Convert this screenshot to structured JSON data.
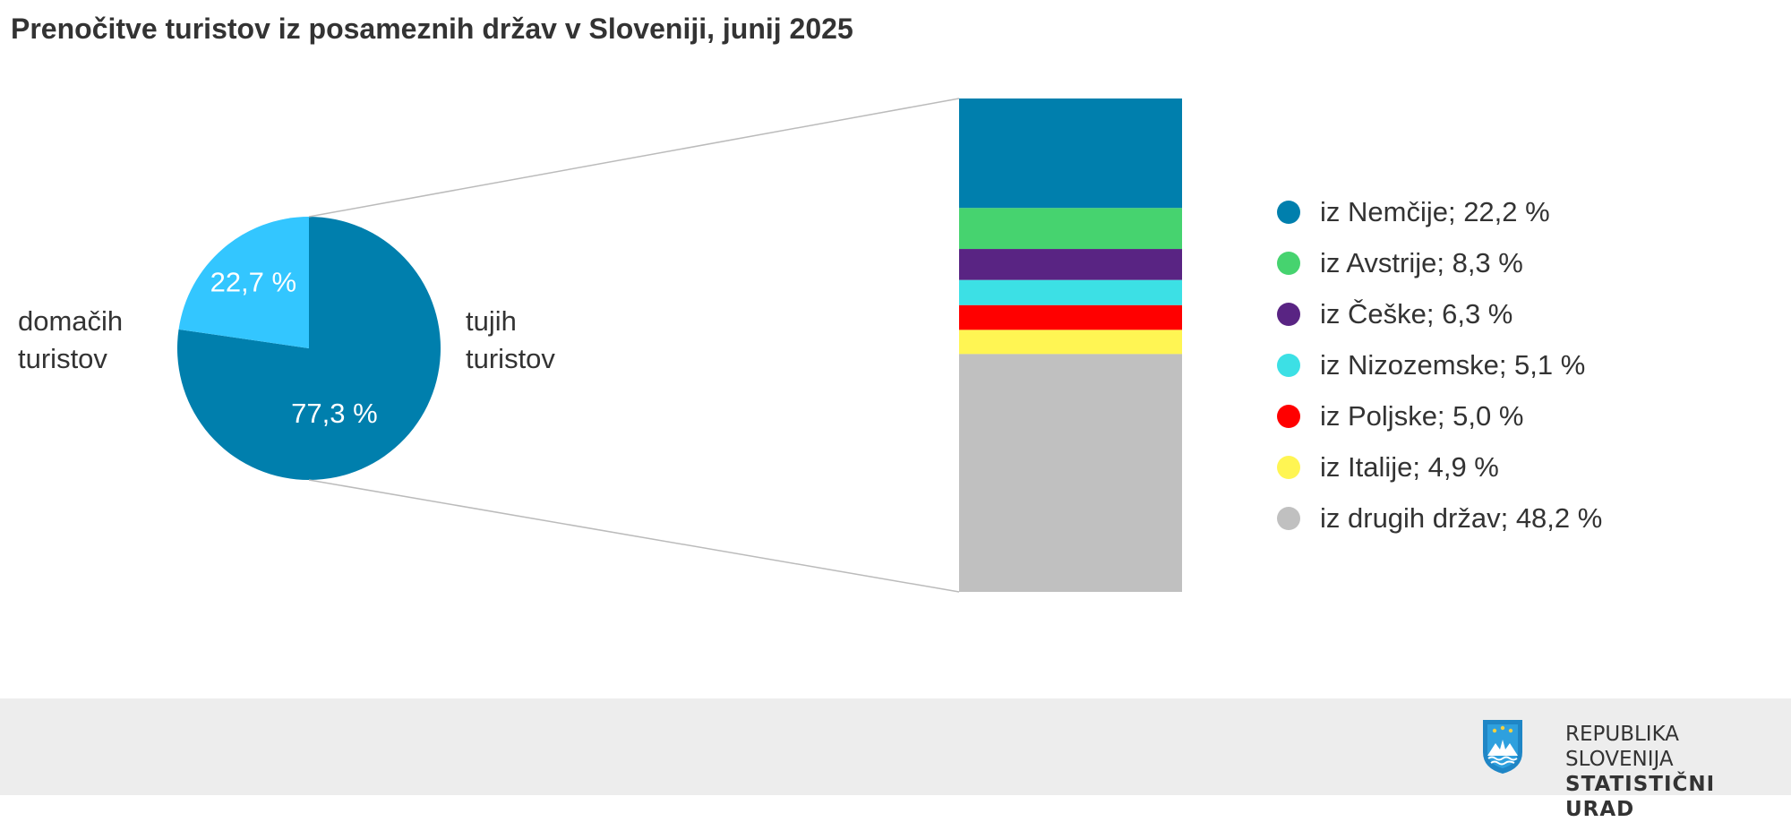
{
  "title": "Prenočitve turistov iz posameznih držav v Sloveniji, junij 2025",
  "chart_data": {
    "type": "pie",
    "pie": {
      "slices": [
        {
          "name": "domačih turistov",
          "value": 22.7,
          "label": "22,7 %",
          "color": "#33c6ff"
        },
        {
          "name": "tujih turistov",
          "value": 77.3,
          "label": "77,3 %",
          "color": "#007fad"
        }
      ],
      "side_labels": {
        "domestic": [
          "domačih",
          "turistov"
        ],
        "foreign": [
          "tujih",
          "turistov"
        ]
      }
    },
    "breakdown": {
      "type": "stacked-bar",
      "of": "tujih turistov",
      "series": [
        {
          "name": "iz Nemčije",
          "value": 22.2,
          "label": "iz Nemčije; 22,2 %",
          "color": "#007fad"
        },
        {
          "name": "iz Avstrije",
          "value": 8.3,
          "label": "iz Avstrije; 8,3 %",
          "color": "#46d36f"
        },
        {
          "name": "iz Češke",
          "value": 6.3,
          "label": "iz Češke; 6,3 %",
          "color": "#592483"
        },
        {
          "name": "iz Nizozemske",
          "value": 5.1,
          "label": "iz Nizozemske; 5,1 %",
          "color": "#3ce0e5"
        },
        {
          "name": "iz Poljske",
          "value": 5.0,
          "label": "iz Poljske; 5,0 %",
          "color": "#ff0000"
        },
        {
          "name": "iz Italije",
          "value": 4.9,
          "label": "iz Italije; 4,9 %",
          "color": "#fff553"
        },
        {
          "name": "iz drugih držav",
          "value": 48.2,
          "label": "iz drugih držav; 48,2 %",
          "color": "#c0c0c0"
        }
      ]
    }
  },
  "footer": {
    "org_line1": "REPUBLIKA SLOVENIJA",
    "org_line2": "STATISTIČNI URAD"
  }
}
